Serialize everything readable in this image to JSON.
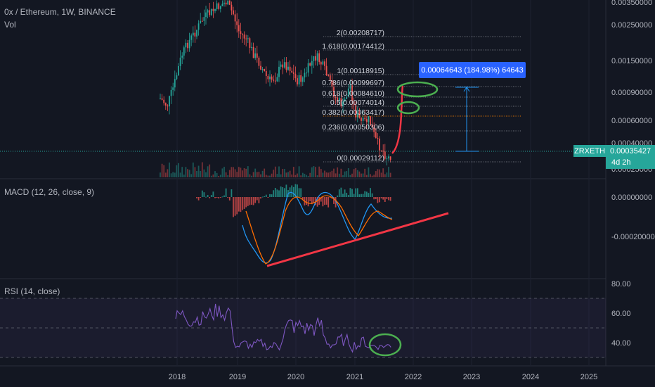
{
  "header": {
    "title": "0x / Ethereum, 1W, BINANCE",
    "vol": "Vol"
  },
  "macd": {
    "label": "MACD (12, 26, close, 9)"
  },
  "rsi": {
    "label": "RSI (14, close)"
  },
  "badges": {
    "measure": "0.00064643 (184.98%) 64643",
    "symbol": "ZRXETH",
    "price": "0.00035427",
    "countdown": "4d 2h"
  },
  "colors": {
    "background": "#131722",
    "up": "#26a69a",
    "down": "#ef5350",
    "macd_line": "#2196f3",
    "signal_line": "#ff6d00",
    "trend_line": "#f23645",
    "ellipse": "#4caf50",
    "rsi_line": "#7e57c2",
    "rsi_band": "#7e57c2",
    "measure": "#2962ff",
    "symbol_badge": "#26a69a"
  },
  "chart_data": [
    {
      "type": "candlestick",
      "title": "0x / Ethereum, 1W, BINANCE",
      "x_ticks": [
        "2018",
        "2019",
        "2020",
        "2021",
        "2022",
        "2023",
        "2024",
        "2025"
      ],
      "y_ticks": [
        "0.00350000",
        "0.00250000",
        "0.00150000",
        "0.00090000",
        "0.00060000",
        "0.00040000",
        "0.00025000"
      ],
      "log_scale": true,
      "fib_levels": [
        {
          "ratio": "2",
          "price": "0.00208717",
          "label": "2(0.00208717)"
        },
        {
          "ratio": "1.618",
          "price": "0.00174412",
          "label": "1.618(0.00174412)"
        },
        {
          "ratio": "1",
          "price": "0.00118915",
          "label": "1(0.00118915)"
        },
        {
          "ratio": "0.786",
          "price": "0.00099697",
          "label": "0.786(0.00099697)"
        },
        {
          "ratio": "0.618",
          "price": "0.00084610",
          "label": "0.618(0.00084610)"
        },
        {
          "ratio": "0.5",
          "price": "0.00074014",
          "label": "0.5(0.00074014)"
        },
        {
          "ratio": "0.382",
          "price": "0.00063417",
          "label": "0.382(0.00063417)"
        },
        {
          "ratio": "0.236",
          "price": "0.00050306",
          "label": "0.236(0.00050306)"
        },
        {
          "ratio": "0",
          "price": "0.00029112",
          "label": "0(0.00029112)"
        }
      ],
      "current_price": "0.00035427"
    },
    {
      "type": "line",
      "title": "MACD (12, 26, close, 9)",
      "y_ticks": [
        "0.00000000",
        "-0.00020000"
      ]
    },
    {
      "type": "line",
      "title": "RSI (14, close)",
      "y_ticks": [
        "80.00",
        "60.00",
        "40.00"
      ],
      "band": [
        30,
        70
      ],
      "mid": 50
    }
  ]
}
